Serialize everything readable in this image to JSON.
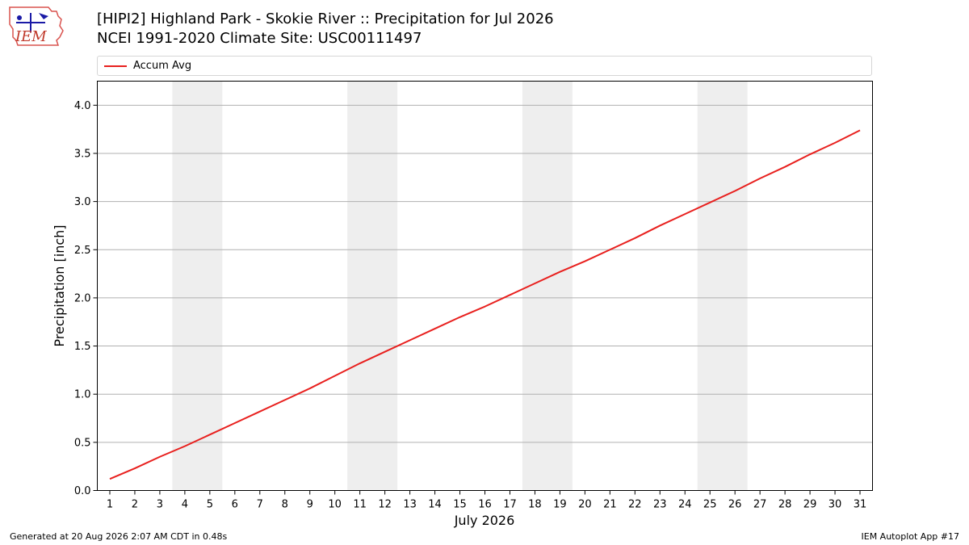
{
  "header": {
    "title_line1": "[HIPI2] Highland Park - Skokie River :: Precipitation for Jul 2026",
    "title_line2": "NCEI 1991-2020 Climate Site: USC00111497",
    "logo_text": "IEM"
  },
  "footer": {
    "left": "Generated at 20 Aug 2026 2:07 AM CDT in 0.48s",
    "right": "IEM Autoplot App #17"
  },
  "colors": {
    "series": "#e8201e",
    "weekend_band": "#eeeeee",
    "grid": "#b0b0b0"
  },
  "chart_data": {
    "type": "line",
    "xlabel": "July 2026",
    "ylabel": "Precipitation [inch]",
    "xlim": [
      0.5,
      31.5
    ],
    "ylim": [
      0,
      4.25
    ],
    "yticks": [
      "0.0",
      "0.5",
      "1.0",
      "1.5",
      "2.0",
      "2.5",
      "3.0",
      "3.5",
      "4.0"
    ],
    "grid": "horizontal",
    "legend": "top",
    "x": [
      1,
      2,
      3,
      4,
      5,
      6,
      7,
      8,
      9,
      10,
      11,
      12,
      13,
      14,
      15,
      16,
      17,
      18,
      19,
      20,
      21,
      22,
      23,
      24,
      25,
      26,
      27,
      28,
      29,
      30,
      31
    ],
    "weekend_bands": [
      [
        3.5,
        5.5
      ],
      [
        10.5,
        12.5
      ],
      [
        17.5,
        19.5
      ],
      [
        24.5,
        26.5
      ]
    ],
    "series": [
      {
        "name": "Accum Avg",
        "values": [
          0.12,
          0.23,
          0.35,
          0.46,
          0.58,
          0.7,
          0.82,
          0.94,
          1.06,
          1.19,
          1.32,
          1.44,
          1.56,
          1.68,
          1.8,
          1.91,
          2.03,
          2.15,
          2.27,
          2.38,
          2.5,
          2.62,
          2.75,
          2.87,
          2.99,
          3.11,
          3.24,
          3.36,
          3.49,
          3.61,
          3.74
        ]
      }
    ]
  }
}
